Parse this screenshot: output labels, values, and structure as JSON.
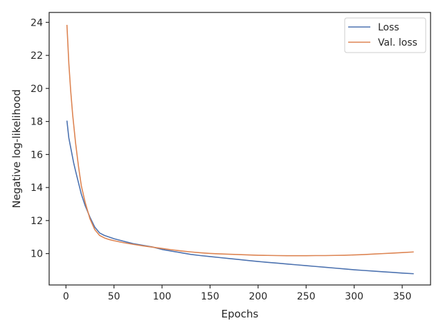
{
  "chart_data": {
    "type": "line",
    "title": "",
    "xlabel": "Epochs",
    "ylabel": "Negative log-likelihood",
    "xlim": [
      -17.5,
      379.5
    ],
    "ylim": [
      8.1,
      24.6
    ],
    "xticks": [
      0,
      50,
      100,
      150,
      200,
      250,
      300,
      350
    ],
    "yticks": [
      10,
      12,
      14,
      16,
      18,
      20,
      22,
      24
    ],
    "grid": false,
    "legend_position": "top-right",
    "series": [
      {
        "name": "Loss",
        "color": "#4c72b0",
        "x": [
          1,
          3,
          5,
          8,
          10,
          13,
          16,
          20,
          25,
          30,
          35,
          40,
          45,
          50,
          60,
          70,
          80,
          90,
          100,
          110,
          120,
          130,
          140,
          150,
          160,
          170,
          180,
          190,
          200,
          210,
          220,
          230,
          240,
          250,
          260,
          270,
          280,
          290,
          300,
          310,
          320,
          330,
          340,
          350,
          362
        ],
        "y": [
          18.05,
          17.0,
          16.4,
          15.5,
          15.0,
          14.3,
          13.6,
          12.9,
          12.2,
          11.6,
          11.25,
          11.1,
          11.0,
          10.9,
          10.75,
          10.6,
          10.5,
          10.4,
          10.25,
          10.15,
          10.05,
          9.95,
          9.88,
          9.82,
          9.76,
          9.7,
          9.64,
          9.58,
          9.52,
          9.47,
          9.42,
          9.37,
          9.32,
          9.27,
          9.22,
          9.17,
          9.12,
          9.07,
          9.02,
          8.98,
          8.94,
          8.9,
          8.86,
          8.82,
          8.78
        ]
      },
      {
        "name": "Val. loss",
        "color": "#dd8452",
        "x": [
          1,
          2,
          3,
          5,
          7,
          10,
          13,
          16,
          20,
          25,
          30,
          35,
          40,
          45,
          50,
          60,
          70,
          80,
          90,
          100,
          110,
          120,
          130,
          140,
          150,
          160,
          170,
          180,
          190,
          200,
          210,
          220,
          230,
          240,
          250,
          260,
          270,
          280,
          290,
          300,
          310,
          320,
          330,
          340,
          350,
          362
        ],
        "y": [
          23.85,
          22.7,
          21.5,
          19.8,
          18.4,
          16.7,
          15.3,
          14.1,
          13.1,
          12.1,
          11.45,
          11.1,
          10.95,
          10.85,
          10.78,
          10.66,
          10.56,
          10.47,
          10.39,
          10.31,
          10.23,
          10.16,
          10.1,
          10.05,
          10.01,
          9.98,
          9.96,
          9.94,
          9.92,
          9.9,
          9.89,
          9.88,
          9.87,
          9.87,
          9.87,
          9.88,
          9.88,
          9.89,
          9.9,
          9.92,
          9.94,
          9.97,
          10.0,
          10.03,
          10.06,
          10.1
        ]
      }
    ]
  }
}
